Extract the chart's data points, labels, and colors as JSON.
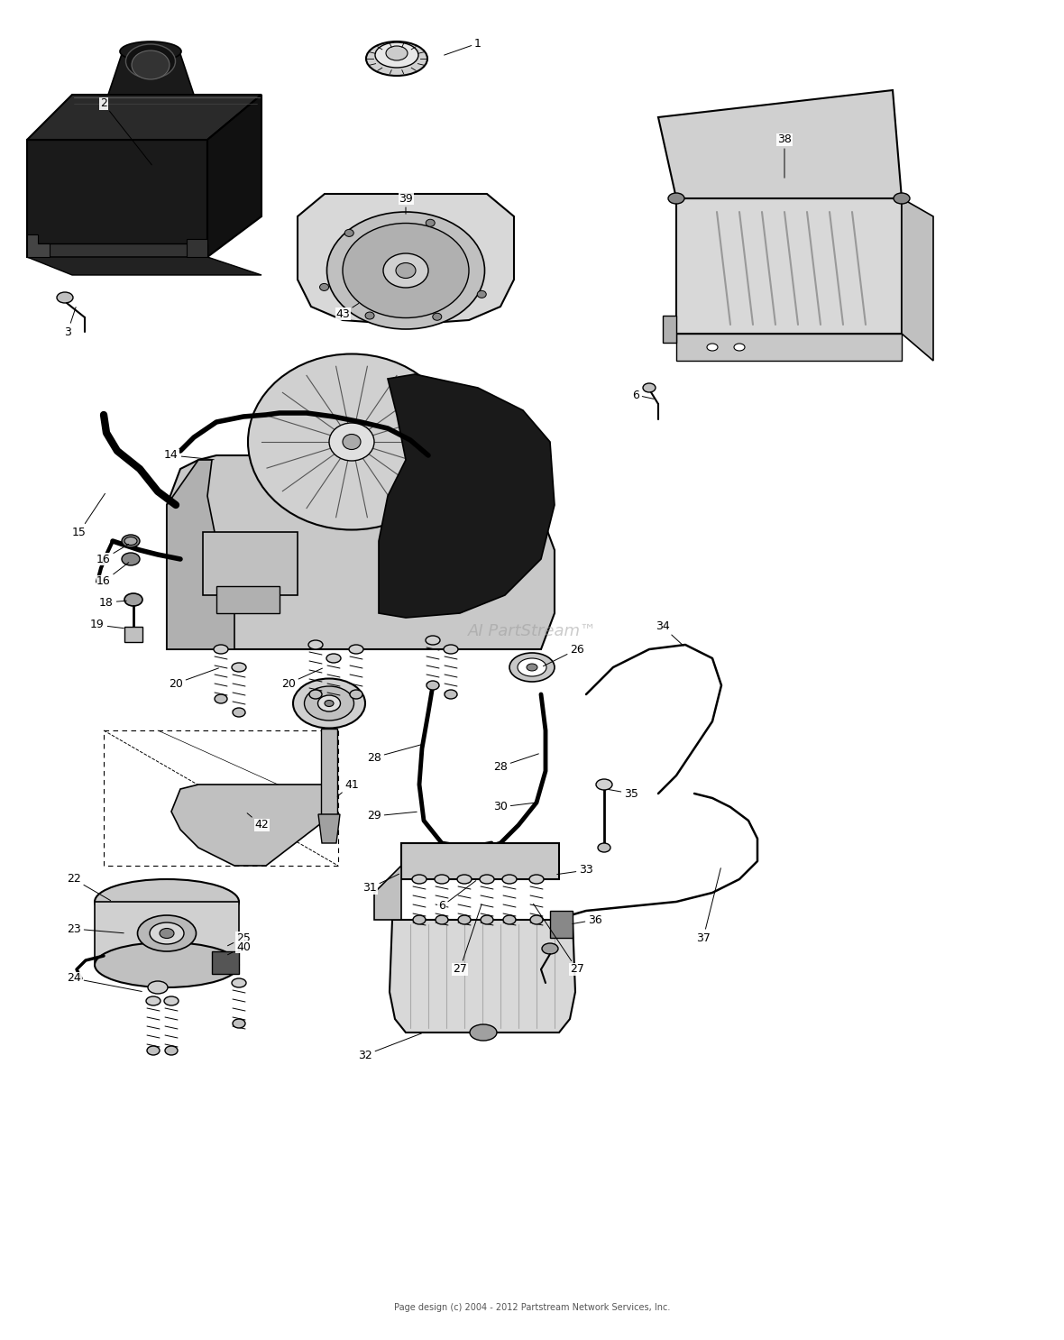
{
  "bg_color": "#ffffff",
  "footer": "Page design (c) 2004 - 2012 Partstream Network Services, Inc.",
  "watermark": "AI PartStream™",
  "fig_width": 11.8,
  "fig_height": 14.86
}
